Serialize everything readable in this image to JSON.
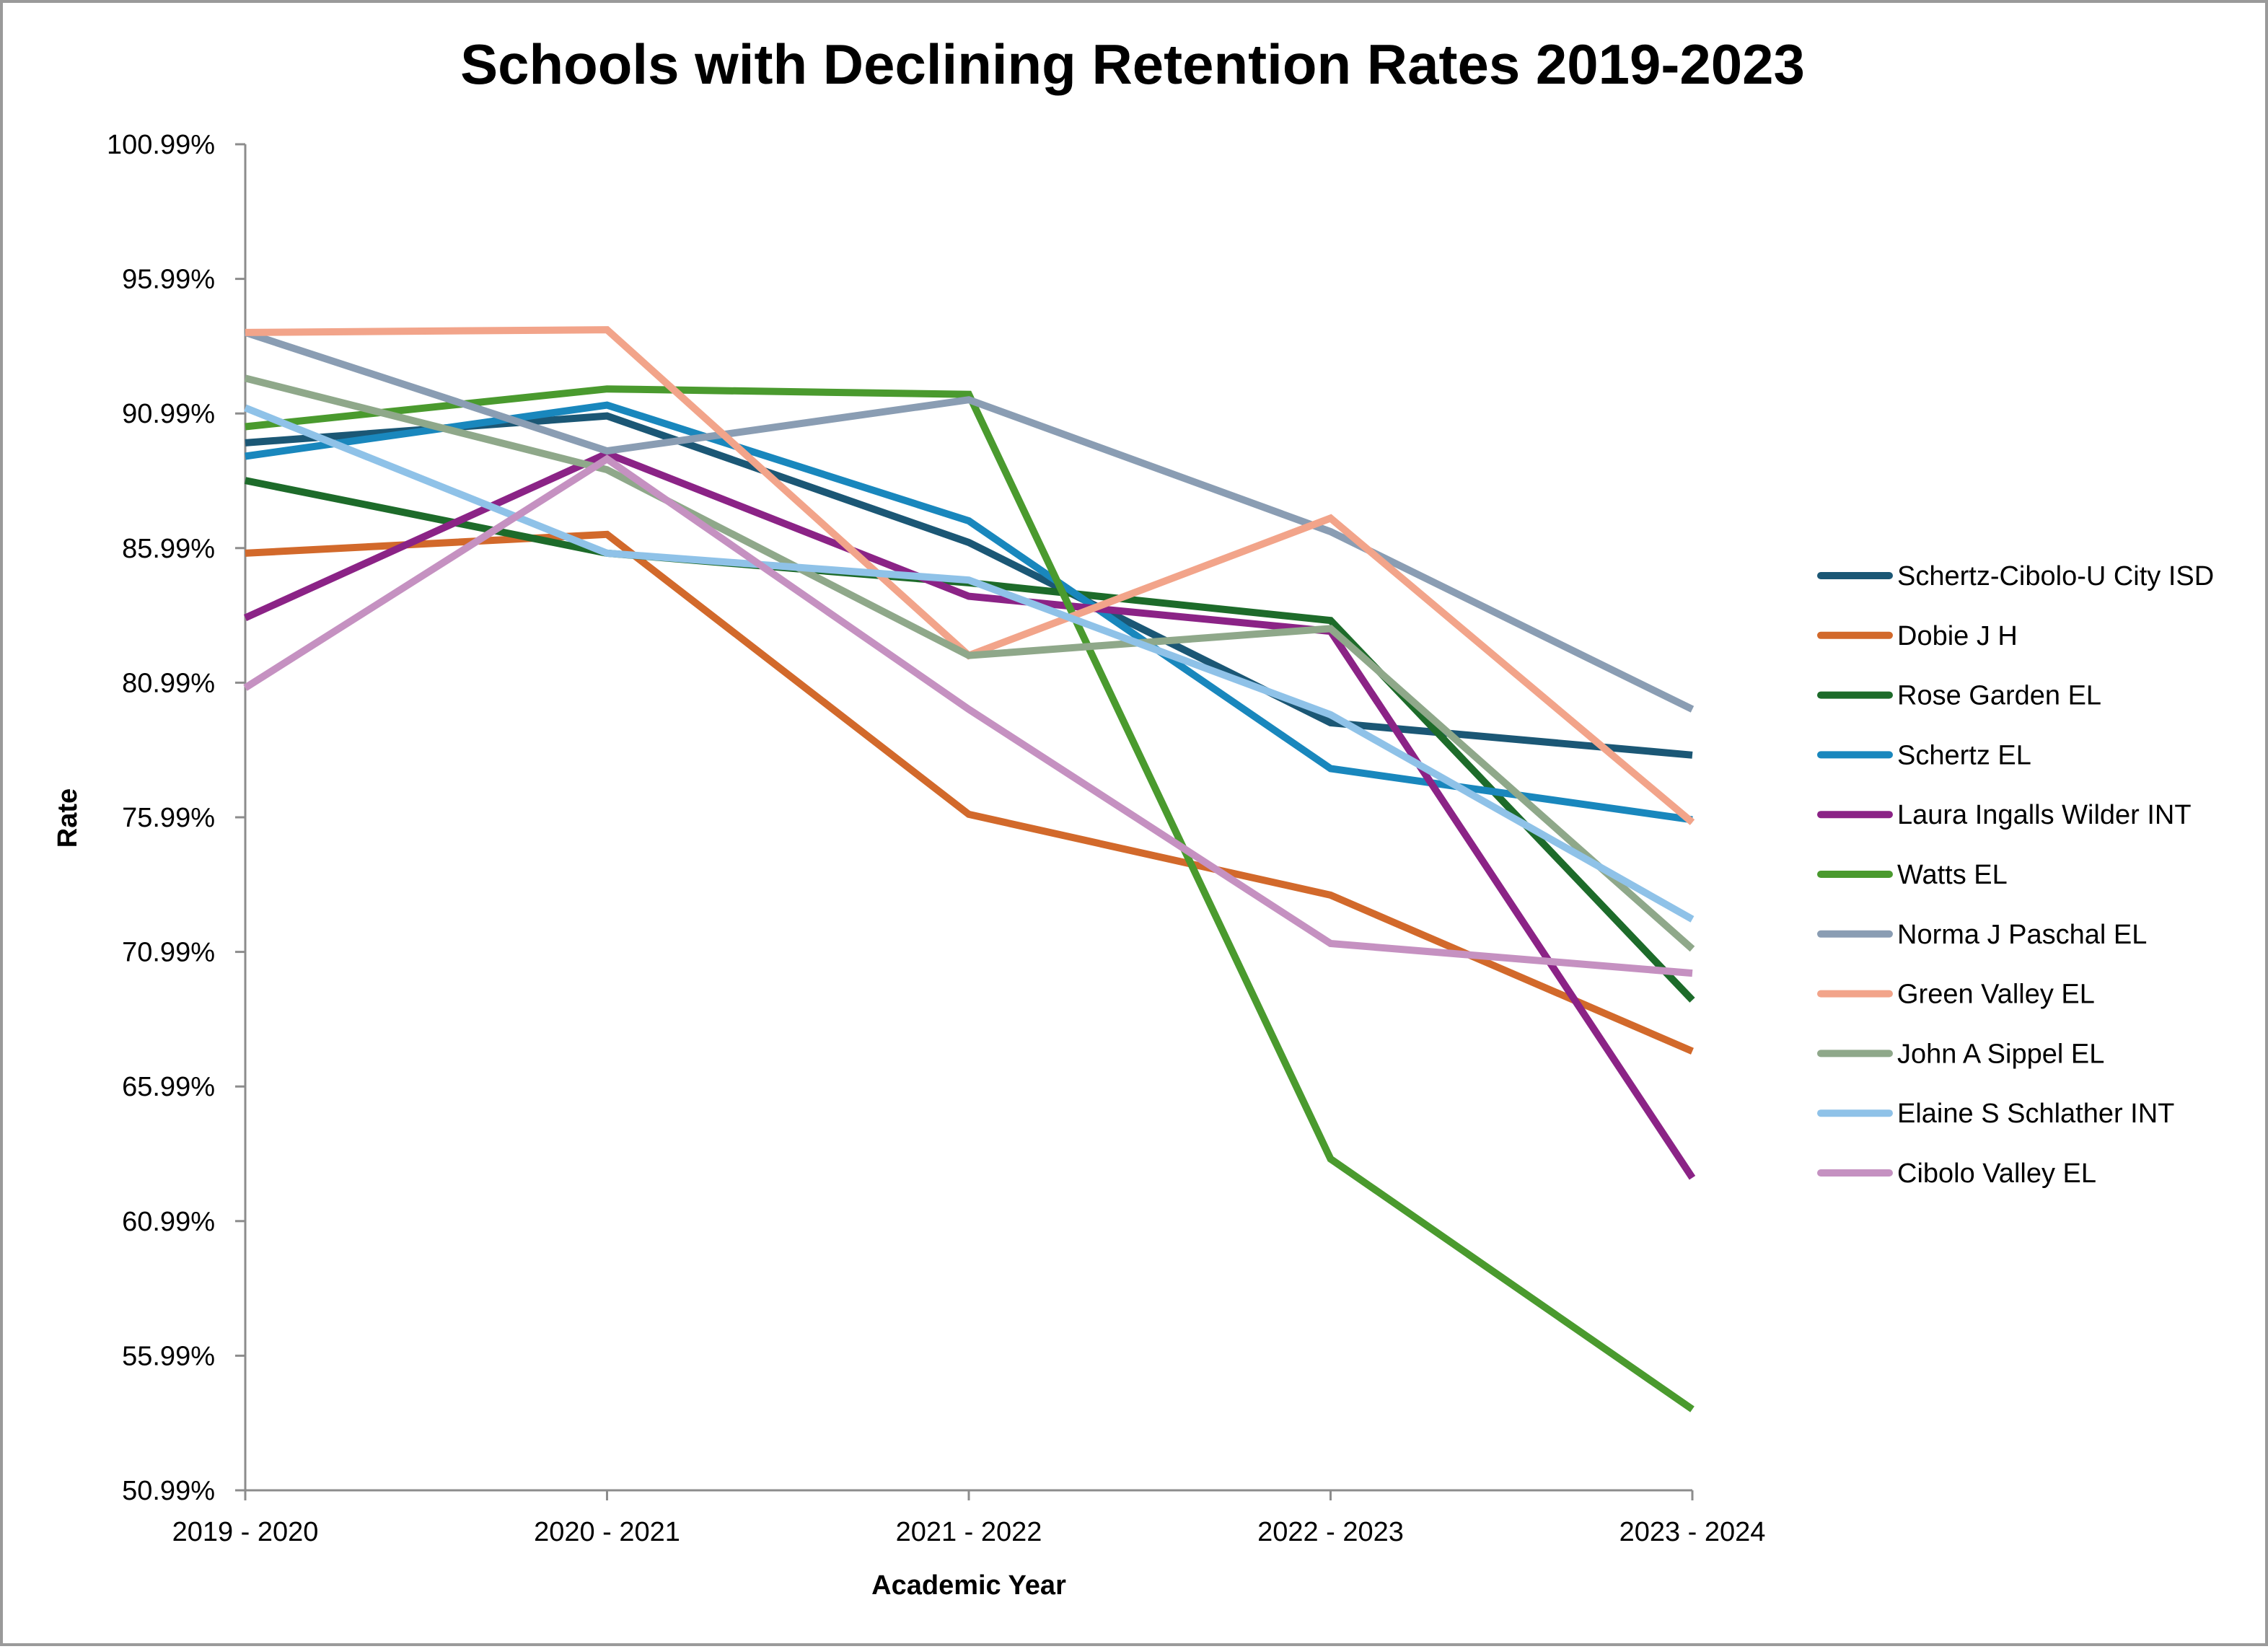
{
  "chart_data": {
    "type": "line",
    "title": "Schools with Declining Retention Rates 2019-2023",
    "xlabel": "Academic Year",
    "ylabel": "Rate",
    "categories": [
      "2019 - 2020",
      "2020 - 2021",
      "2021 - 2022",
      "2022 - 2023",
      "2023 - 2024"
    ],
    "ylim": [
      50.99,
      100.99
    ],
    "yticks": [
      50.99,
      55.99,
      60.99,
      65.99,
      70.99,
      75.99,
      80.99,
      85.99,
      90.99,
      95.99,
      100.99
    ],
    "ytick_labels": [
      "50.99%",
      "55.99%",
      "60.99%",
      "65.99%",
      "70.99%",
      "75.99%",
      "80.99%",
      "85.99%",
      "90.99%",
      "95.99%",
      "100.99%"
    ],
    "grid": false,
    "legend_position": "right",
    "series": [
      {
        "name": "Schertz-Cibolo-U City ISD",
        "color": "#1b5775",
        "values": [
          89.9,
          90.9,
          86.2,
          79.5,
          78.3
        ]
      },
      {
        "name": "Dobie J H",
        "color": "#d2692b",
        "values": [
          85.8,
          86.5,
          76.1,
          73.1,
          67.3
        ]
      },
      {
        "name": "Rose Garden EL",
        "color": "#1d6b2a",
        "values": [
          88.5,
          85.8,
          84.7,
          83.3,
          69.2
        ]
      },
      {
        "name": "Schertz EL",
        "color": "#1987bd",
        "values": [
          89.4,
          91.3,
          87.0,
          77.8,
          75.9
        ]
      },
      {
        "name": "Laura Ingalls Wilder INT",
        "color": "#8b2386",
        "values": [
          83.4,
          89.5,
          84.2,
          82.9,
          62.6
        ]
      },
      {
        "name": "Watts EL",
        "color": "#4a9a2e",
        "values": [
          90.5,
          91.9,
          91.7,
          63.3,
          54.0
        ]
      },
      {
        "name": "Norma J Paschal EL",
        "color": "#8a9db3",
        "values": [
          94.0,
          89.6,
          91.5,
          86.6,
          80.0
        ]
      },
      {
        "name": "Green Valley EL",
        "color": "#f2a48a",
        "values": [
          94.0,
          94.1,
          82.0,
          87.1,
          75.8
        ]
      },
      {
        "name": "John A Sippel EL",
        "color": "#8fa88a",
        "values": [
          92.3,
          88.9,
          82.0,
          83.0,
          71.1
        ]
      },
      {
        "name": "Elaine S Schlather INT",
        "color": "#8fc2e8",
        "values": [
          91.2,
          85.8,
          84.8,
          79.8,
          72.2
        ]
      },
      {
        "name": "Cibolo Valley EL",
        "color": "#c591c1",
        "values": [
          80.8,
          89.3,
          80.0,
          71.3,
          70.2
        ]
      }
    ]
  }
}
